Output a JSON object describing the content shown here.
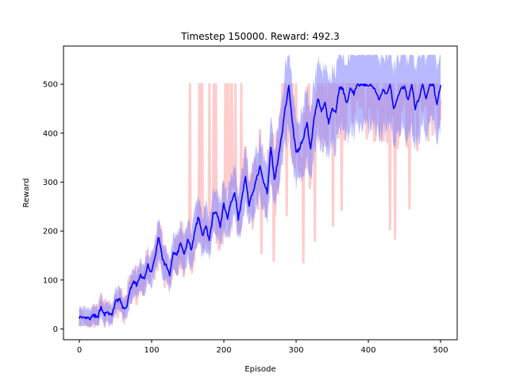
{
  "chart_data": {
    "type": "line",
    "title": "Timestep 150000. Reward: 492.3",
    "xlabel": "Episode",
    "ylabel": "Reward",
    "xlim": [
      -22,
      523
    ],
    "ylim": [
      -22,
      578
    ],
    "xticks": [
      0,
      100,
      200,
      300,
      400,
      500
    ],
    "yticks": [
      0,
      100,
      200,
      300,
      400,
      500
    ],
    "grid": false,
    "legend": "none",
    "raw_color": "#ffcccc",
    "band_color": "#8080ff",
    "mean_color": "#0000ff",
    "keypoints": [
      [
        0,
        25
      ],
      [
        5,
        20
      ],
      [
        10,
        22
      ],
      [
        15,
        20
      ],
      [
        20,
        28
      ],
      [
        25,
        22
      ],
      [
        30,
        45
      ],
      [
        35,
        30
      ],
      [
        40,
        32
      ],
      [
        45,
        28
      ],
      [
        50,
        55
      ],
      [
        55,
        62
      ],
      [
        60,
        45
      ],
      [
        65,
        40
      ],
      [
        70,
        80
      ],
      [
        75,
        95
      ],
      [
        80,
        90
      ],
      [
        85,
        110
      ],
      [
        90,
        100
      ],
      [
        95,
        130
      ],
      [
        100,
        115
      ],
      [
        105,
        150
      ],
      [
        110,
        190
      ],
      [
        115,
        140
      ],
      [
        120,
        130
      ],
      [
        125,
        110
      ],
      [
        130,
        160
      ],
      [
        135,
        150
      ],
      [
        140,
        175
      ],
      [
        145,
        150
      ],
      [
        150,
        185
      ],
      [
        155,
        160
      ],
      [
        160,
        200
      ],
      [
        165,
        230
      ],
      [
        170,
        190
      ],
      [
        175,
        210
      ],
      [
        180,
        180
      ],
      [
        185,
        235
      ],
      [
        190,
        240
      ],
      [
        195,
        210
      ],
      [
        200,
        255
      ],
      [
        205,
        225
      ],
      [
        210,
        260
      ],
      [
        215,
        280
      ],
      [
        220,
        225
      ],
      [
        225,
        270
      ],
      [
        230,
        310
      ],
      [
        235,
        250
      ],
      [
        240,
        280
      ],
      [
        245,
        305
      ],
      [
        250,
        330
      ],
      [
        255,
        300
      ],
      [
        260,
        280
      ],
      [
        265,
        370
      ],
      [
        270,
        305
      ],
      [
        275,
        345
      ],
      [
        280,
        395
      ],
      [
        285,
        450
      ],
      [
        290,
        495
      ],
      [
        295,
        420
      ],
      [
        300,
        360
      ],
      [
        305,
        370
      ],
      [
        310,
        390
      ],
      [
        315,
        420
      ],
      [
        320,
        370
      ],
      [
        325,
        430
      ],
      [
        330,
        470
      ],
      [
        335,
        445
      ],
      [
        340,
        460
      ],
      [
        345,
        420
      ],
      [
        350,
        450
      ],
      [
        355,
        440
      ],
      [
        360,
        495
      ],
      [
        365,
        490
      ],
      [
        370,
        460
      ],
      [
        375,
        490
      ],
      [
        380,
        480
      ],
      [
        385,
        500
      ],
      [
        390,
        500
      ],
      [
        395,
        500
      ],
      [
        400,
        500
      ],
      [
        405,
        500
      ],
      [
        410,
        485
      ],
      [
        415,
        465
      ],
      [
        420,
        490
      ],
      [
        425,
        480
      ],
      [
        430,
        500
      ],
      [
        435,
        450
      ],
      [
        440,
        470
      ],
      [
        445,
        490
      ],
      [
        450,
        495
      ],
      [
        455,
        465
      ],
      [
        460,
        500
      ],
      [
        465,
        450
      ],
      [
        470,
        470
      ],
      [
        475,
        500
      ],
      [
        480,
        470
      ],
      [
        485,
        500
      ],
      [
        490,
        500
      ],
      [
        495,
        455
      ],
      [
        500,
        500
      ]
    ]
  }
}
